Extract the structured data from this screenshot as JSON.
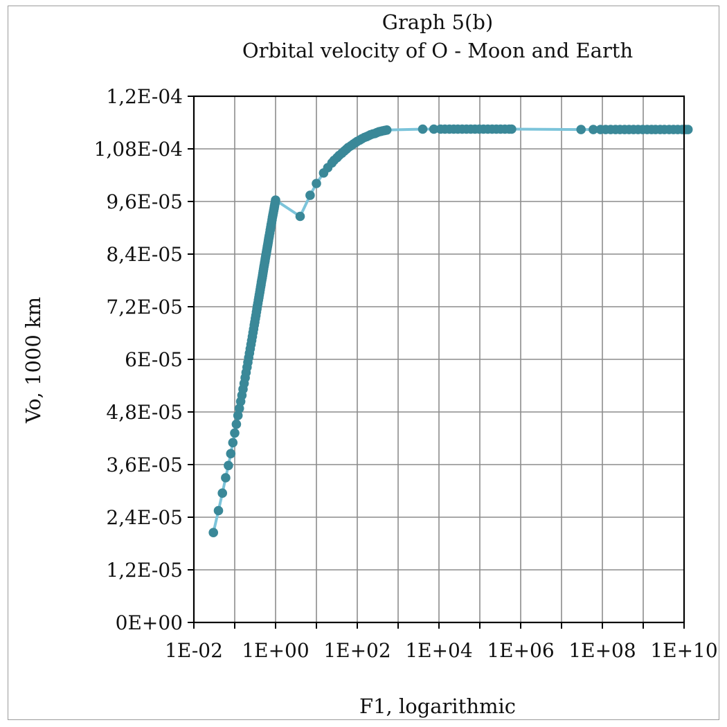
{
  "chart_data": {
    "type": "scatter",
    "title": "Graph 5(b)",
    "subtitle": "Orbital velocity of O - Moon and Earth",
    "xlabel": "F1, logarithmic",
    "ylabel": "Vo, 1000 km",
    "x_scale": "log",
    "xlim": [
      0.01,
      10000000000
    ],
    "ylim": [
      0,
      0.00012
    ],
    "grid": true,
    "legend": "none",
    "x_tick_values": [
      0.01,
      0.1,
      1,
      10,
      100,
      1000,
      10000,
      100000,
      1000000,
      10000000,
      100000000,
      1000000000,
      10000000000
    ],
    "x_tick_labels": [
      "1E-02",
      "",
      "1E+00",
      "",
      "1E+02",
      "",
      "1E+04",
      "",
      "1E+06",
      "",
      "1E+08",
      "",
      "1E+10"
    ],
    "y_tick_values": [
      0,
      1.2e-05,
      2.4e-05,
      3.6e-05,
      4.8e-05,
      6e-05,
      7.2e-05,
      8.4e-05,
      9.6e-05,
      0.000108,
      0.00012
    ],
    "y_tick_labels": [
      "0E+00",
      "1,2E-05",
      "2,4E-05",
      "3,6E-05",
      "4,8E-05",
      "6E-05",
      "7,2E-05",
      "8,4E-05",
      "9,6E-05",
      "1,08E-04",
      "1,2E-04"
    ],
    "colors": {
      "line": "#7cc4da",
      "marker": "#3a8898",
      "grid": "#8c8c8c",
      "axis": "#000000"
    },
    "series": [
      {
        "points": [
          [
            0.03,
            2.05e-05
          ],
          [
            0.04,
            2.55e-05
          ],
          [
            0.05,
            2.95e-05
          ],
          [
            0.06,
            3.3e-05
          ],
          [
            0.07,
            3.58e-05
          ],
          [
            0.08,
            3.85e-05
          ],
          [
            0.09,
            4.1e-05
          ],
          [
            0.1,
            4.32e-05
          ],
          [
            0.11,
            4.52e-05
          ],
          [
            0.12,
            4.72e-05
          ],
          [
            0.13,
            4.88e-05
          ],
          [
            0.14,
            5.04e-05
          ],
          [
            0.15,
            5.18e-05
          ],
          [
            0.16,
            5.32e-05
          ],
          [
            0.17,
            5.45e-05
          ],
          [
            0.18,
            5.58e-05
          ],
          [
            0.19,
            5.7e-05
          ],
          [
            0.2,
            5.82e-05
          ],
          [
            0.21,
            5.93e-05
          ],
          [
            0.22,
            6.04e-05
          ],
          [
            0.23,
            6.14e-05
          ],
          [
            0.24,
            6.24e-05
          ],
          [
            0.25,
            6.34e-05
          ],
          [
            0.26,
            6.43e-05
          ],
          [
            0.27,
            6.52e-05
          ],
          [
            0.28,
            6.61e-05
          ],
          [
            0.29,
            6.69e-05
          ],
          [
            0.3,
            6.78e-05
          ],
          [
            0.31,
            6.85e-05
          ],
          [
            0.32,
            6.93e-05
          ],
          [
            0.33,
            7e-05
          ],
          [
            0.34,
            7.08e-05
          ],
          [
            0.35,
            7.15e-05
          ],
          [
            0.36,
            7.22e-05
          ],
          [
            0.37,
            7.28e-05
          ],
          [
            0.38,
            7.35e-05
          ],
          [
            0.39,
            7.41e-05
          ],
          [
            0.4,
            7.47e-05
          ],
          [
            0.41,
            7.53e-05
          ],
          [
            0.42,
            7.59e-05
          ],
          [
            0.43,
            7.65e-05
          ],
          [
            0.44,
            7.7e-05
          ],
          [
            0.45,
            7.76e-05
          ],
          [
            0.46,
            7.81e-05
          ],
          [
            0.47,
            7.86e-05
          ],
          [
            0.48,
            7.91e-05
          ],
          [
            0.49,
            7.96e-05
          ],
          [
            0.5,
            8.01e-05
          ],
          [
            0.51,
            8.06e-05
          ],
          [
            0.52,
            8.11e-05
          ],
          [
            0.53,
            8.15e-05
          ],
          [
            0.54,
            8.2e-05
          ],
          [
            0.55,
            8.24e-05
          ],
          [
            0.56,
            8.29e-05
          ],
          [
            0.57,
            8.33e-05
          ],
          [
            0.58,
            8.37e-05
          ],
          [
            0.59,
            8.41e-05
          ],
          [
            0.6,
            8.45e-05
          ],
          [
            0.61,
            8.49e-05
          ],
          [
            0.62,
            8.53e-05
          ],
          [
            0.63,
            8.57e-05
          ],
          [
            0.64,
            8.6e-05
          ],
          [
            0.65,
            8.64e-05
          ],
          [
            0.66,
            8.68e-05
          ],
          [
            0.67,
            8.71e-05
          ],
          [
            0.68,
            8.75e-05
          ],
          [
            0.69,
            8.78e-05
          ],
          [
            0.7,
            8.82e-05
          ],
          [
            0.72,
            8.88e-05
          ],
          [
            0.74,
            8.95e-05
          ],
          [
            0.76,
            9.01e-05
          ],
          [
            0.78,
            9.07e-05
          ],
          [
            0.8,
            9.12e-05
          ],
          [
            0.82,
            9.18e-05
          ],
          [
            0.84,
            9.24e-05
          ],
          [
            0.86,
            9.29e-05
          ],
          [
            0.88,
            9.34e-05
          ],
          [
            0.9,
            9.39e-05
          ],
          [
            0.92,
            9.44e-05
          ],
          [
            0.94,
            9.49e-05
          ],
          [
            0.96,
            9.54e-05
          ],
          [
            0.98,
            9.58e-05
          ],
          [
            1,
            9.63e-05
          ],
          [
            4,
            9.26e-05
          ],
          [
            7,
            9.74e-05
          ],
          [
            10,
            0.0001001
          ],
          [
            15,
            0.0001025
          ],
          [
            19,
            0.0001037
          ],
          [
            24,
            0.0001048
          ],
          [
            27,
            0.0001054
          ],
          [
            32,
            0.000106
          ],
          [
            36,
            0.0001065
          ],
          [
            42,
            0.000107
          ],
          [
            48,
            0.0001075
          ],
          [
            54,
            0.0001079
          ],
          [
            60,
            0.0001083
          ],
          [
            70,
            0.0001087
          ],
          [
            80,
            0.0001091
          ],
          [
            90,
            0.0001094
          ],
          [
            100,
            0.0001097
          ],
          [
            115,
            0.00011
          ],
          [
            130,
            0.0001103
          ],
          [
            150,
            0.0001106
          ],
          [
            170,
            0.0001108
          ],
          [
            190,
            0.000111
          ],
          [
            210,
            0.0001112
          ],
          [
            240,
            0.0001114
          ],
          [
            270,
            0.0001115
          ],
          [
            300,
            0.0001117
          ],
          [
            340,
            0.0001119
          ],
          [
            380,
            0.000112
          ],
          [
            420,
            0.0001121
          ],
          [
            470,
            0.0001122
          ],
          [
            530,
            0.0001123
          ],
          [
            4000,
            0.0001125
          ],
          [
            7500,
            0.0001125
          ],
          [
            11000,
            0.0001125
          ],
          [
            14000,
            0.0001125
          ],
          [
            18000,
            0.0001125
          ],
          [
            23000,
            0.0001125
          ],
          [
            29000,
            0.0001125
          ],
          [
            37000,
            0.0001125
          ],
          [
            47000,
            0.0001125
          ],
          [
            60000,
            0.0001125
          ],
          [
            76000,
            0.0001125
          ],
          [
            97000,
            0.0001125
          ],
          [
            123000,
            0.0001125
          ],
          [
            157000,
            0.0001125
          ],
          [
            200000,
            0.0001125
          ],
          [
            254000,
            0.0001125
          ],
          [
            323000,
            0.0001125
          ],
          [
            411000,
            0.0001125
          ],
          [
            523000,
            0.0001125
          ],
          [
            600000,
            0.0001125
          ],
          [
            30000000,
            0.0001124
          ],
          [
            60000000,
            0.0001124
          ],
          [
            90000000,
            0.0001124
          ],
          [
            120000000,
            0.0001124
          ],
          [
            160000000,
            0.0001124
          ],
          [
            210000000,
            0.0001124
          ],
          [
            270000000,
            0.0001124
          ],
          [
            350000000,
            0.0001124
          ],
          [
            450000000,
            0.0001124
          ],
          [
            580000000,
            0.0001124
          ],
          [
            750000000,
            0.0001124
          ],
          [
            970000000,
            0.0001124
          ],
          [
            1250000000,
            0.0001124
          ],
          [
            1600000000,
            0.0001124
          ],
          [
            2000000000,
            0.0001124
          ],
          [
            2600000000,
            0.0001124
          ],
          [
            3300000000,
            0.0001124
          ],
          [
            4300000000,
            0.0001124
          ],
          [
            5500000000,
            0.0001124
          ],
          [
            7000000000,
            0.0001124
          ],
          [
            9000000000,
            0.0001124
          ],
          [
            11000000000,
            0.0001124
          ],
          [
            12500000000,
            0.0001124
          ]
        ]
      }
    ]
  }
}
